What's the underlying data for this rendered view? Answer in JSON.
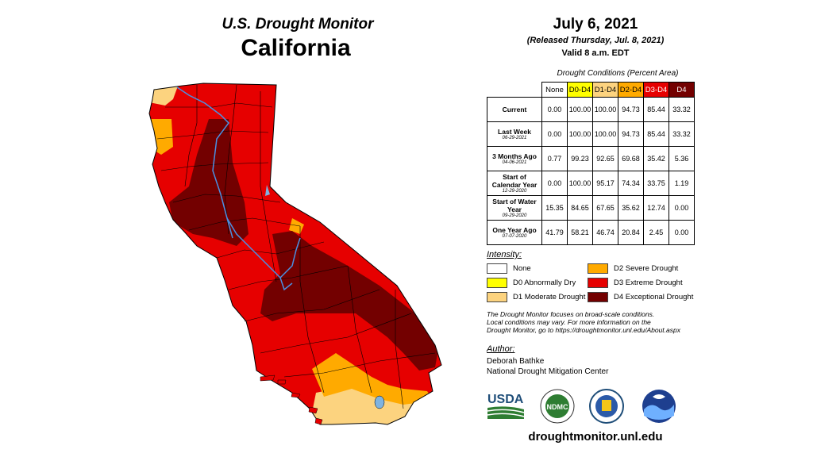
{
  "header": {
    "title": "U.S. Drought Monitor",
    "state": "California"
  },
  "date": "July 6, 2021",
  "released": "(Released Thursday, Jul. 8, 2021)",
  "valid": "Valid 8 a.m. EDT",
  "table": {
    "title": "Drought Conditions (Percent Area)",
    "columns": [
      {
        "label": "None",
        "color": "#ffffff",
        "text_color": "#000000"
      },
      {
        "label": "D0-D4",
        "color": "#ffff00",
        "text_color": "#000000"
      },
      {
        "label": "D1-D4",
        "color": "#fcd37f",
        "text_color": "#000000"
      },
      {
        "label": "D2-D4",
        "color": "#ffaa00",
        "text_color": "#000000"
      },
      {
        "label": "D3-D4",
        "color": "#e60000",
        "text_color": "#ffffff"
      },
      {
        "label": "D4",
        "color": "#730000",
        "text_color": "#ffffff"
      }
    ],
    "rows": [
      {
        "label": "Current",
        "sub": "",
        "values": [
          "0.00",
          "100.00",
          "100.00",
          "94.73",
          "85.44",
          "33.32"
        ]
      },
      {
        "label": "Last Week",
        "sub": "06-29-2021",
        "values": [
          "0.00",
          "100.00",
          "100.00",
          "94.73",
          "85.44",
          "33.32"
        ]
      },
      {
        "label": "3 Months Ago",
        "sub": "04-06-2021",
        "values": [
          "0.77",
          "99.23",
          "92.65",
          "69.68",
          "35.42",
          "5.36"
        ]
      },
      {
        "label": "Start of Calendar Year",
        "sub": "12-29-2020",
        "values": [
          "0.00",
          "100.00",
          "95.17",
          "74.34",
          "33.75",
          "1.19"
        ]
      },
      {
        "label": "Start of Water Year",
        "sub": "09-29-2020",
        "values": [
          "15.35",
          "84.65",
          "67.65",
          "35.62",
          "12.74",
          "0.00"
        ]
      },
      {
        "label": "One Year Ago",
        "sub": "07-07-2020",
        "values": [
          "41.79",
          "58.21",
          "46.74",
          "20.84",
          "2.45",
          "0.00"
        ]
      }
    ]
  },
  "legend": {
    "title": "Intensity:",
    "items": [
      {
        "label": "None",
        "color": "#ffffff"
      },
      {
        "label": "D0 Abnormally Dry",
        "color": "#ffff00"
      },
      {
        "label": "D1 Moderate Drought",
        "color": "#fcd37f"
      },
      {
        "label": "D2 Severe Drought",
        "color": "#ffaa00"
      },
      {
        "label": "D3 Extreme Drought",
        "color": "#e60000"
      },
      {
        "label": "D4 Exceptional Drought",
        "color": "#730000"
      }
    ]
  },
  "note": {
    "line1": "The Drought Monitor focuses on broad-scale conditions.",
    "line2": "Local conditions may vary. For more information on the",
    "line3": "Drought Monitor, go to https://droughtmonitor.unl.edu/About.aspx"
  },
  "author": {
    "title": "Author:",
    "name": "Deborah Bathke",
    "org": "National Drought Mitigation Center"
  },
  "logos": {
    "usda": "USDA",
    "ndmc": "NDMC",
    "noaa": "NOAA"
  },
  "url": "droughtmonitor.unl.edu"
}
